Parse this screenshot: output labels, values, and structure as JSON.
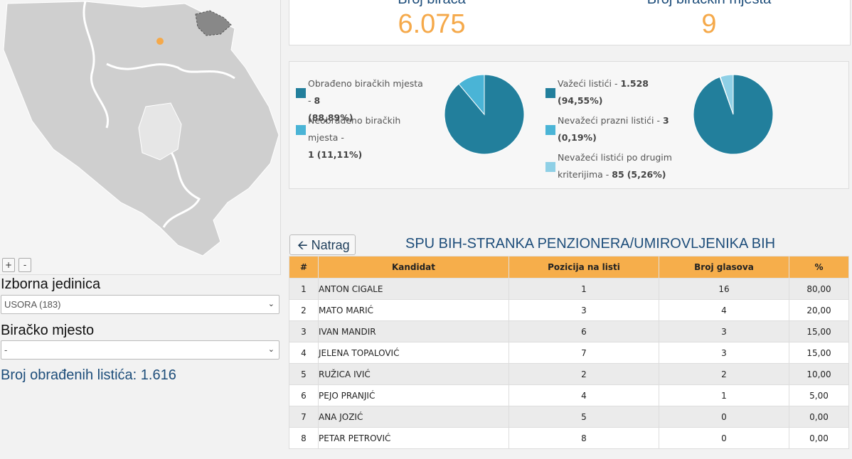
{
  "map": {
    "zoom_in": "+",
    "zoom_out": "-"
  },
  "left": {
    "izborna_label": "Izborna jedinica",
    "izborna_value": "USORA (183)",
    "biracko_label": "Biračko mjesto",
    "biracko_value": "-",
    "total_label": "Broj obrađenih listića: 1.616"
  },
  "stats": {
    "voters_label": "Broj birača",
    "voters_value": "6.075",
    "places_label": "Broj biračkih mjesta",
    "places_value": "9"
  },
  "pie1": {
    "items": [
      {
        "label": "Obrađeno biračkih mjesta - ",
        "value": "8",
        "pct": "(88,89%)",
        "color": "#227f9c",
        "fraction": 0.8889
      },
      {
        "label": "Neobrađeno biračkih mjesta - ",
        "value": "1",
        "pct": "(11,11%)",
        "color": "#4ab4d6",
        "fraction": 0.1111
      }
    ]
  },
  "pie2": {
    "items": [
      {
        "label": "Važeći listići - ",
        "value": "1.528",
        "pct": "(94,55%)",
        "color": "#227f9c",
        "fraction": 0.9455
      },
      {
        "label": "Nevažeći prazni listići - ",
        "value": "3",
        "pct": "(0,19%)",
        "color": "#4ab4d6",
        "fraction": 0.0019
      },
      {
        "label": "Nevažeći listići po drugim kriterijima - ",
        "value": "85",
        "pct": "(5,26%)",
        "color": "#8fd0e6",
        "fraction": 0.0526
      }
    ]
  },
  "table": {
    "back_label": "Natrag",
    "title": "SPU BIH-STRANKA PENZIONERA/UMIROVLJENIKA BIH",
    "headers": [
      "#",
      "Kandidat",
      "Pozicija na listi",
      "Broj glasova",
      "%"
    ],
    "rows": [
      [
        "1",
        "ANTON CIGALE",
        "1",
        "16",
        "80,00"
      ],
      [
        "2",
        "MATO MARIĆ",
        "3",
        "4",
        "20,00"
      ],
      [
        "3",
        "IVAN MANDIR",
        "6",
        "3",
        "15,00"
      ],
      [
        "4",
        "JELENA TOPALOVIĆ",
        "7",
        "3",
        "15,00"
      ],
      [
        "5",
        "RUŽICA IVIĆ",
        "2",
        "2",
        "10,00"
      ],
      [
        "6",
        "PEJO PRANJIĆ",
        "4",
        "1",
        "5,00"
      ],
      [
        "7",
        "ANA JOZIĆ",
        "5",
        "0",
        "0,00"
      ],
      [
        "8",
        "PETAR PETROVIĆ",
        "8",
        "0",
        "0,00"
      ]
    ]
  }
}
